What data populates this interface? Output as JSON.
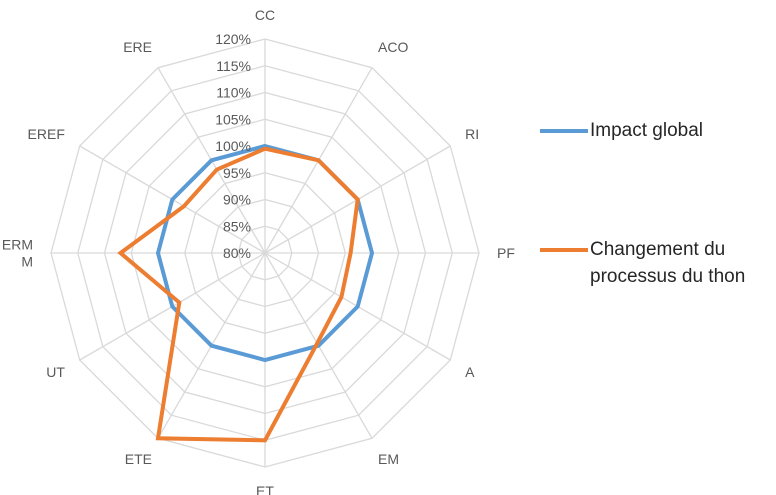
{
  "chart_data": {
    "type": "radar",
    "categories": [
      "CC",
      "ACO",
      "RI",
      "PF",
      "A",
      "EM",
      "ET",
      "ETE",
      "UT",
      "ERM M",
      "EREF",
      "ERE"
    ],
    "category_lines": [
      [
        "CC"
      ],
      [
        "ACO"
      ],
      [
        "RI"
      ],
      [
        "PF"
      ],
      [
        "A"
      ],
      [
        "EM"
      ],
      [
        "ET"
      ],
      [
        "ETE"
      ],
      [
        "UT"
      ],
      [
        "ERM",
        "M"
      ],
      [
        "EREF"
      ],
      [
        "ERE"
      ]
    ],
    "rlim": [
      80,
      120
    ],
    "r_ticks": [
      80,
      85,
      90,
      95,
      100,
      105,
      110,
      115,
      120
    ],
    "r_tick_labels": [
      "80%",
      "85%",
      "90%",
      "95%",
      "100%",
      "105%",
      "110%",
      "115%",
      "120%"
    ],
    "grid": true,
    "legend_position": "right",
    "series": [
      {
        "name": "Impact global",
        "color": "#5b9bd5",
        "values": [
          100,
          100,
          100,
          100,
          100,
          100,
          100,
          100,
          100,
          100,
          100,
          100
        ]
      },
      {
        "name": "Changement du processus du thon",
        "name_lines": [
          "Changement du",
          "processus du thon"
        ],
        "color": "#ed7d31",
        "values": [
          99.5,
          100,
          100,
          96,
          96.5,
          99.5,
          115,
          120,
          98.5,
          107,
          97.5,
          98
        ]
      }
    ]
  }
}
